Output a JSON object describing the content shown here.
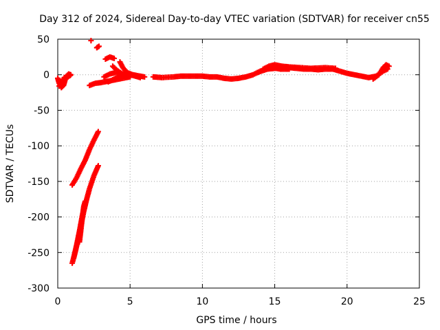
{
  "chart_data": {
    "type": "scatter",
    "title": "Day 312 of 2024, Sidereal Day-to-day VTEC variation (SDTVAR) for receiver cn55",
    "xlabel": "GPS time / hours",
    "ylabel": "SDTVAR / TECUs",
    "xlim": [
      0,
      25
    ],
    "ylim": [
      -300,
      50
    ],
    "xticks": [
      0,
      5,
      10,
      15,
      20,
      25
    ],
    "yticks": [
      50,
      0,
      -50,
      -100,
      -150,
      -200,
      -250,
      -300
    ],
    "xtick_labels": [
      "0",
      "5",
      "10",
      "15",
      "20",
      "25"
    ],
    "ytick_labels": [
      "50",
      "0",
      "-50",
      "-100",
      "-150",
      "-200",
      "-250",
      "-300"
    ],
    "grid": true,
    "marker": "plus",
    "series": [
      {
        "name": "SDTVAR",
        "color": "#ff0000",
        "tracks": [
          {
            "name": "early-dip",
            "points": [
              [
                0.0,
                -5
              ],
              [
                0.1,
                -12
              ],
              [
                0.25,
                -18
              ],
              [
                0.4,
                -15
              ],
              [
                0.5,
                -8
              ],
              [
                0.6,
                -2
              ],
              [
                0.75,
                1
              ],
              [
                0.9,
                0
              ]
            ]
          },
          {
            "name": "early-dip-2",
            "points": [
              [
                0.1,
                -16
              ],
              [
                0.3,
                -10
              ],
              [
                0.45,
                -4
              ],
              [
                0.55,
                -6
              ],
              [
                0.7,
                -3
              ],
              [
                0.85,
                -1
              ]
            ]
          },
          {
            "name": "upper-diagonal",
            "points": [
              [
                1.0,
                -155
              ],
              [
                1.3,
                -145
              ],
              [
                1.6,
                -132
              ],
              [
                1.9,
                -120
              ],
              [
                2.2,
                -105
              ],
              [
                2.5,
                -92
              ],
              [
                2.8,
                -80
              ]
            ]
          },
          {
            "name": "lower-band-a",
            "points": [
              [
                1.0,
                -265
              ],
              [
                1.2,
                -250
              ],
              [
                1.4,
                -232
              ],
              [
                1.6,
                -212
              ],
              [
                1.8,
                -192
              ],
              [
                2.0,
                -175
              ],
              [
                2.2,
                -160
              ],
              [
                2.5,
                -142
              ],
              [
                2.8,
                -128
              ]
            ]
          },
          {
            "name": "lower-band-b",
            "points": [
              [
                1.1,
                -258
              ],
              [
                1.3,
                -240
              ],
              [
                1.5,
                -220
              ],
              [
                1.7,
                -198
              ],
              [
                1.9,
                -182
              ]
            ]
          },
          {
            "name": "lower-band-c",
            "points": [
              [
                1.5,
                -235
              ],
              [
                1.6,
                -218
              ],
              [
                1.7,
                -200
              ],
              [
                1.8,
                -185
              ],
              [
                1.9,
                -178
              ]
            ]
          },
          {
            "name": "low-trail",
            "points": [
              [
                2.2,
                -15
              ],
              [
                2.6,
                -12
              ],
              [
                3.0,
                -11
              ],
              [
                3.5,
                -9
              ],
              [
                4.0,
                -7
              ],
              [
                4.5,
                -5
              ],
              [
                5.0,
                -3
              ]
            ]
          },
          {
            "name": "arc-1",
            "points": [
              [
                3.2,
                -3
              ],
              [
                3.6,
                1
              ],
              [
                4.0,
                3
              ],
              [
                4.4,
                1
              ],
              [
                4.8,
                -2
              ]
            ]
          },
          {
            "name": "arc-2",
            "points": [
              [
                3.5,
                -10
              ],
              [
                3.9,
                -6
              ],
              [
                4.3,
                -2
              ],
              [
                4.7,
                0
              ],
              [
                5.2,
                -1
              ],
              [
                5.7,
                -4
              ]
            ]
          },
          {
            "name": "arc-3",
            "points": [
              [
                4.3,
                18
              ],
              [
                4.5,
                10
              ],
              [
                4.8,
                3
              ],
              [
                5.2,
                0
              ],
              [
                5.7,
                -2
              ],
              [
                6.0,
                -3
              ]
            ]
          },
          {
            "name": "arc-4",
            "points": [
              [
                3.8,
                12
              ],
              [
                4.1,
                6
              ],
              [
                4.4,
                2
              ],
              [
                4.8,
                -1
              ]
            ]
          },
          {
            "name": "arc-5",
            "points": [
              [
                3.3,
                22
              ],
              [
                3.6,
                25
              ],
              [
                3.9,
                23
              ]
            ]
          },
          {
            "name": "top-spot-1",
            "points": [
              [
                2.3,
                48
              ]
            ]
          },
          {
            "name": "top-spot-2",
            "points": [
              [
                2.7,
                38
              ],
              [
                2.85,
                40
              ]
            ]
          },
          {
            "name": "main-flat",
            "points": [
              [
                6.6,
                -3
              ],
              [
                7.2,
                -4
              ],
              [
                8.0,
                -3
              ],
              [
                8.5,
                -2
              ],
              [
                9.0,
                -2
              ],
              [
                9.5,
                -2
              ],
              [
                10.0,
                -2
              ],
              [
                10.5,
                -3
              ],
              [
                11.0,
                -3
              ],
              [
                11.5,
                -5
              ],
              [
                12.0,
                -6
              ],
              [
                12.5,
                -5
              ],
              [
                13.0,
                -3
              ],
              [
                13.5,
                0
              ],
              [
                14.0,
                5
              ],
              [
                14.5,
                8
              ],
              [
                15.0,
                9
              ],
              [
                15.5,
                10
              ],
              [
                16.0,
                10
              ],
              [
                16.5,
                9
              ],
              [
                17.0,
                8
              ],
              [
                17.5,
                8
              ],
              [
                18.0,
                7
              ],
              [
                18.5,
                8
              ],
              [
                19.0,
                8
              ],
              [
                19.5,
                5
              ],
              [
                20.0,
                2
              ],
              [
                20.5,
                0
              ],
              [
                21.0,
                -2
              ],
              [
                21.5,
                -4
              ],
              [
                22.0,
                -2
              ],
              [
                22.5,
                5
              ],
              [
                22.8,
                8
              ]
            ]
          },
          {
            "name": "main-flat-2",
            "points": [
              [
                14.2,
                8
              ],
              [
                14.6,
                12
              ],
              [
                15.0,
                14
              ],
              [
                15.5,
                12
              ],
              [
                16.0,
                11
              ],
              [
                16.8,
                10
              ],
              [
                17.5,
                9
              ],
              [
                18.5,
                10
              ],
              [
                19.2,
                9
              ]
            ]
          },
          {
            "name": "main-flat-3",
            "points": [
              [
                13.8,
                3
              ],
              [
                14.2,
                6
              ],
              [
                14.8,
                10
              ],
              [
                15.4,
                8
              ],
              [
                16.0,
                8
              ]
            ]
          },
          {
            "name": "end-tail",
            "points": [
              [
                21.8,
                -6
              ],
              [
                22.2,
                0
              ],
              [
                22.5,
                10
              ],
              [
                22.7,
                14
              ],
              [
                22.9,
                12
              ]
            ]
          }
        ]
      }
    ]
  }
}
